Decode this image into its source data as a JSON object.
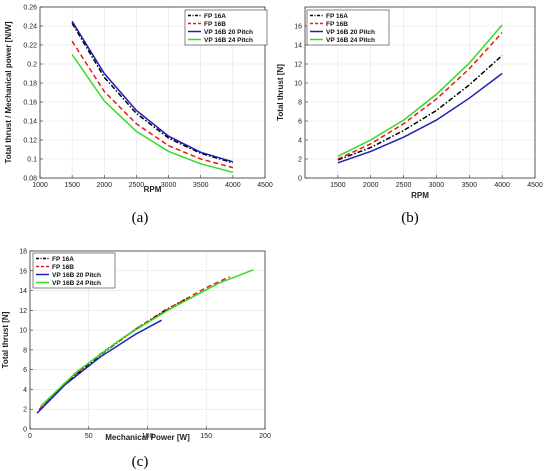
{
  "chart_data": [
    {
      "type": "line",
      "panel_label": "(a)",
      "xlabel": "RPM",
      "ylabel": "Total thrust / Mechanical power [N/W]",
      "xlim": [
        1000,
        4500
      ],
      "ylim": [
        0.08,
        0.26
      ],
      "xticks": [
        1000,
        1500,
        2000,
        2500,
        3000,
        3500,
        4000,
        4500
      ],
      "yticks": [
        0.08,
        0.1,
        0.12,
        0.14,
        0.16,
        0.18,
        0.2,
        0.22,
        0.24,
        0.26
      ],
      "ytick_labels": [
        "0.08",
        "0.1",
        "0.12",
        "0.14",
        "0.16",
        "0.18",
        "0.2",
        "0.22",
        "0.24",
        "0.26"
      ],
      "grid": true,
      "legend_position": "top-right",
      "series": [
        {
          "name": "FP 16A",
          "color": "#000000",
          "dash": "dashdot",
          "x": [
            1500,
            2000,
            2500,
            3000,
            3500,
            4000
          ],
          "y": [
            0.243,
            0.186,
            0.148,
            0.122,
            0.106,
            0.096
          ]
        },
        {
          "name": "FP 16B",
          "color": "#e41a1c",
          "dash": "dashed",
          "x": [
            1500,
            2000,
            2500,
            3000,
            3500,
            4000
          ],
          "y": [
            0.224,
            0.171,
            0.137,
            0.114,
            0.1,
            0.091
          ]
        },
        {
          "name": "VP 16B 20 Pitch",
          "color": "#1f1fb4",
          "dash": "solid",
          "x": [
            1500,
            2000,
            2500,
            3000,
            3500,
            4000
          ],
          "y": [
            0.245,
            0.19,
            0.151,
            0.124,
            0.107,
            0.097
          ]
        },
        {
          "name": "VP 16B 24 Pitch",
          "color": "#33dd22",
          "dash": "solid",
          "x": [
            1500,
            2000,
            2500,
            3000,
            3500,
            4000
          ],
          "y": [
            0.21,
            0.161,
            0.129,
            0.108,
            0.095,
            0.086
          ]
        }
      ]
    },
    {
      "type": "line",
      "panel_label": "(b)",
      "xlabel": "RPM",
      "ylabel": "Total thrust [N]",
      "xlim": [
        1000,
        4500
      ],
      "ylim": [
        0,
        18
      ],
      "xticks": [
        1500,
        2000,
        2500,
        3000,
        3500,
        4000,
        4500
      ],
      "yticks": [
        0,
        2,
        4,
        6,
        8,
        10,
        12,
        14,
        16
      ],
      "ytick_labels": [
        "0",
        "2",
        "4",
        "6",
        "8",
        "10",
        "12",
        "14",
        "16"
      ],
      "grid": true,
      "legend_position": "top-left",
      "series": [
        {
          "name": "FP 16A",
          "color": "#000000",
          "dash": "dashdot",
          "x": [
            1500,
            2000,
            2500,
            3000,
            3500,
            4000
          ],
          "y": [
            1.9,
            3.2,
            5.0,
            7.1,
            9.8,
            12.9
          ]
        },
        {
          "name": "FP 16B",
          "color": "#e41a1c",
          "dash": "dashed",
          "x": [
            1500,
            2000,
            2500,
            3000,
            3500,
            4000
          ],
          "y": [
            2.0,
            3.6,
            5.7,
            8.3,
            11.5,
            15.3
          ]
        },
        {
          "name": "VP 16B 20 Pitch",
          "color": "#1f1fb4",
          "dash": "solid",
          "x": [
            1500,
            2000,
            2500,
            3000,
            3500,
            4000
          ],
          "y": [
            1.6,
            2.8,
            4.3,
            6.1,
            8.4,
            11.0
          ]
        },
        {
          "name": "VP 16B 24 Pitch",
          "color": "#33dd22",
          "dash": "solid",
          "x": [
            1500,
            2000,
            2500,
            3000,
            3500,
            4000
          ],
          "y": [
            2.3,
            4.0,
            6.1,
            8.8,
            12.1,
            16.1
          ]
        }
      ]
    },
    {
      "type": "line",
      "panel_label": "(c)",
      "xlabel": "Mechanical Power [W]",
      "ylabel": "Total thrust [N]",
      "xlim": [
        0,
        200
      ],
      "ylim": [
        0,
        18
      ],
      "xticks": [
        0,
        50,
        100,
        150,
        200
      ],
      "yticks": [
        0,
        2,
        4,
        6,
        8,
        10,
        12,
        14,
        16,
        18
      ],
      "ytick_labels": [
        "0",
        "2",
        "4",
        "6",
        "8",
        "10",
        "12",
        "14",
        "16",
        "18"
      ],
      "grid": true,
      "legend_position": "top-left",
      "series": [
        {
          "name": "FP 16A",
          "color": "#000000",
          "dash": "dashdot",
          "x": [
            8,
            30,
            60,
            90,
            115,
            135
          ],
          "y": [
            1.9,
            4.6,
            7.5,
            10.1,
            12.0,
            13.3
          ]
        },
        {
          "name": "FP 16B",
          "color": "#e41a1c",
          "dash": "dashed",
          "x": [
            8,
            30,
            60,
            90,
            120,
            150,
            170
          ],
          "y": [
            2.0,
            4.7,
            7.6,
            10.1,
            12.3,
            14.3,
            15.4
          ]
        },
        {
          "name": "VP 16B 20 Pitch",
          "color": "#1f1fb4",
          "dash": "solid",
          "x": [
            6,
            30,
            60,
            90,
            112
          ],
          "y": [
            1.6,
            4.5,
            7.3,
            9.6,
            11.0
          ]
        },
        {
          "name": "VP 16B 24 Pitch",
          "color": "#33dd22",
          "dash": "solid",
          "x": [
            9,
            40,
            80,
            120,
            160,
            190
          ],
          "y": [
            2.3,
            5.8,
            9.3,
            12.2,
            14.7,
            16.1
          ]
        }
      ]
    }
  ]
}
